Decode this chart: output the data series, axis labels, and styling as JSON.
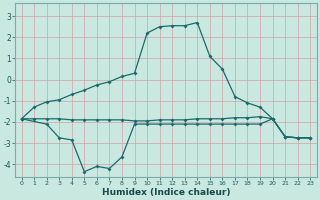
{
  "xlabel": "Humidex (Indice chaleur)",
  "bg_color": "#c8e8e0",
  "grid_color": "#d4a0a8",
  "line_color": "#1a6b6b",
  "xlim": [
    -0.5,
    23.5
  ],
  "ylim": [
    -4.6,
    3.6
  ],
  "xticks": [
    0,
    1,
    2,
    3,
    4,
    5,
    6,
    7,
    8,
    9,
    10,
    11,
    12,
    13,
    14,
    15,
    16,
    17,
    18,
    19,
    20,
    21,
    22,
    23
  ],
  "yticks": [
    -4,
    -3,
    -2,
    -1,
    0,
    1,
    2,
    3
  ],
  "line1_x": [
    0,
    1,
    2,
    3,
    4,
    5,
    6,
    7,
    8,
    9,
    10,
    11,
    12,
    13,
    14,
    15,
    16,
    17,
    18,
    19,
    20,
    21,
    22,
    23
  ],
  "line1_y": [
    -1.85,
    -1.3,
    -1.05,
    -0.95,
    -0.7,
    -0.5,
    -0.25,
    -0.1,
    0.15,
    0.3,
    2.2,
    2.5,
    2.55,
    2.55,
    2.7,
    1.1,
    0.5,
    -0.8,
    -1.1,
    -1.3,
    -1.85,
    -2.7,
    -2.75,
    -2.75
  ],
  "line2_x": [
    0,
    2,
    3,
    4,
    5,
    6,
    7,
    8,
    9,
    10,
    11,
    12,
    13,
    14,
    15,
    16,
    17,
    18,
    19,
    20,
    21,
    22,
    23
  ],
  "line2_y": [
    -1.85,
    -2.1,
    -2.75,
    -2.85,
    -4.35,
    -4.1,
    -4.2,
    -3.65,
    -2.1,
    -2.1,
    -2.1,
    -2.1,
    -2.1,
    -2.1,
    -2.1,
    -2.1,
    -2.1,
    -2.1,
    -2.1,
    -1.85,
    -2.7,
    -2.75,
    -2.75
  ],
  "line3_x": [
    0,
    1,
    2,
    3,
    4,
    5,
    6,
    7,
    8,
    9,
    10,
    11,
    12,
    13,
    14,
    15,
    16,
    17,
    18,
    19,
    20,
    21,
    22,
    23
  ],
  "line3_y": [
    -1.85,
    -1.85,
    -1.85,
    -1.85,
    -1.9,
    -1.9,
    -1.9,
    -1.9,
    -1.9,
    -1.95,
    -1.95,
    -1.9,
    -1.9,
    -1.9,
    -1.85,
    -1.85,
    -1.85,
    -1.8,
    -1.8,
    -1.75,
    -1.85,
    -2.7,
    -2.75,
    -2.75
  ]
}
